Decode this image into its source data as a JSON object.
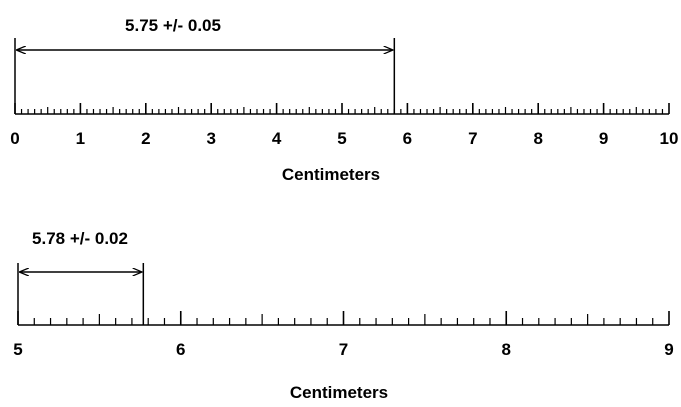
{
  "colors": {
    "ink": "#000000",
    "background": "#ffffff"
  },
  "rulers": [
    {
      "start": 0,
      "end": 10,
      "tick_labels": [
        "0",
        "1",
        "2",
        "3",
        "4",
        "5",
        "6",
        "7",
        "8",
        "9",
        "10"
      ],
      "minor_divisions_per_unit": 10,
      "axis_label": "Centimeters",
      "measurement": {
        "value": 5.8,
        "label": "5.75 +/- 0.05"
      }
    },
    {
      "start": 5,
      "end": 9,
      "tick_labels": [
        "5",
        "6",
        "7",
        "8",
        "9"
      ],
      "minor_divisions_per_unit": 10,
      "axis_label": "Centimeters",
      "measurement": {
        "value": 5.77,
        "label": "5.78 +/- 0.02"
      }
    }
  ]
}
